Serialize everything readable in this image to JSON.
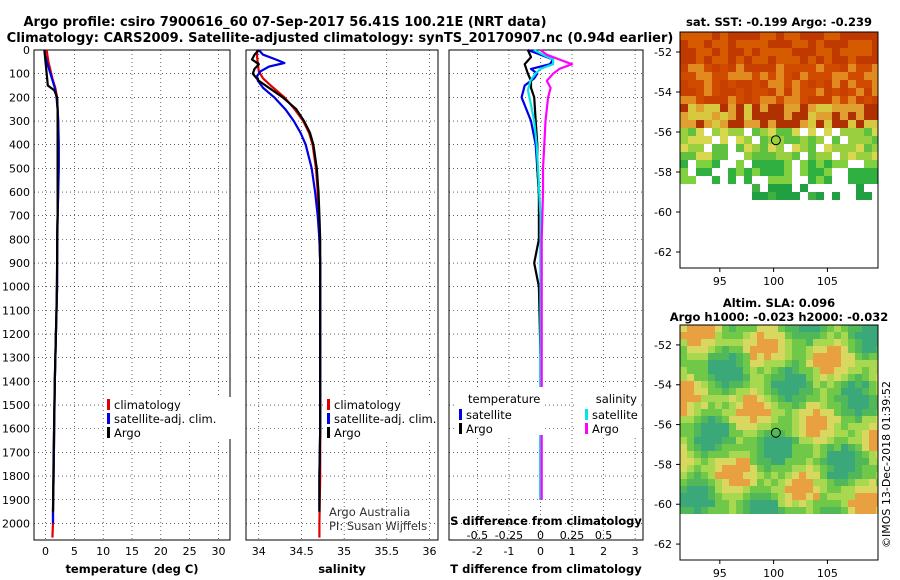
{
  "figure": {
    "title_line1": "Argo profile: csiro 7900616_60 07-Sep-2017 56.41S 100.21E (NRT data)",
    "title_line2": "Climatology: CARS2009. Satellite-adjusted climatology: synTS_20170907.nc (0.94d earlier)",
    "credit": "©IMOS 13-Dec-2018 01:39:52",
    "watermark_line1": "Argo Australia",
    "watermark_line2": "PI: Susan Wijffels"
  },
  "colors": {
    "climatology": "#e00000",
    "satellite": "#0000e6",
    "argo": "#000000",
    "satellite_salinity": "#00e5e5",
    "argo_salinity": "#ff00ff",
    "grid": "#000000"
  },
  "depth_ticks": [
    "0",
    "100",
    "200",
    "300",
    "400",
    "500",
    "600",
    "700",
    "800",
    "900",
    "1000",
    "1100",
    "1200",
    "1300",
    "1400",
    "1500",
    "1600",
    "1700",
    "1800",
    "1900",
    "2000"
  ],
  "chart_data": [
    {
      "type": "line",
      "name": "temperature",
      "xlabel": "temperature (deg C)",
      "xlim": [
        -2,
        32
      ],
      "ylim": [
        0,
        2070
      ],
      "xticks": [
        "0",
        "5",
        "10",
        "15",
        "20",
        "25",
        "30"
      ],
      "legend": [
        "climatology",
        "satellite-adj. clim.",
        "Argo"
      ],
      "series": [
        {
          "name": "climatology",
          "color": "#e00000",
          "depth": [
            0,
            20,
            50,
            80,
            120,
            160,
            200,
            250,
            300,
            400,
            500,
            600,
            700,
            800,
            900,
            1000,
            1200,
            1400,
            1600,
            1800,
            1950,
            2000,
            2060
          ],
          "values": [
            0.2,
            0.3,
            0.5,
            0.8,
            1.2,
            1.7,
            2.0,
            2.1,
            2.2,
            2.2,
            2.2,
            2.2,
            2.1,
            2.0,
            2.0,
            2.0,
            1.8,
            1.6,
            1.5,
            1.4,
            1.3,
            1.3,
            1.2
          ]
        },
        {
          "name": "satellite-adj. clim.",
          "color": "#0000e6",
          "depth": [
            0,
            20,
            50,
            80,
            120,
            160,
            200,
            250,
            300,
            400,
            500,
            600,
            700,
            800,
            900,
            1000,
            1200,
            1400,
            1600,
            1800,
            1950,
            2000
          ],
          "values": [
            -0.2,
            -0.1,
            0.2,
            0.6,
            1.1,
            1.6,
            1.9,
            2.1,
            2.2,
            2.3,
            2.3,
            2.2,
            2.1,
            2.0,
            2.0,
            2.0,
            1.8,
            1.6,
            1.5,
            1.4,
            1.3,
            1.3
          ]
        },
        {
          "name": "Argo",
          "color": "#000000",
          "depth": [
            0,
            50,
            100,
            150,
            170,
            200,
            250,
            300,
            400,
            500,
            700,
            900,
            1100,
            1400,
            1700,
            1950
          ],
          "values": [
            -0.2,
            0.0,
            0.2,
            0.4,
            1.5,
            2.0,
            2.1,
            2.1,
            2.1,
            2.1,
            2.1,
            2.0,
            1.9,
            1.6,
            1.4,
            1.3
          ]
        }
      ]
    },
    {
      "type": "line",
      "name": "salinity",
      "xlabel": "salinity",
      "xlim": [
        33.85,
        36.1
      ],
      "ylim": [
        0,
        2070
      ],
      "xticks": [
        "34",
        "34.5",
        "35",
        "35.5",
        "36"
      ],
      "legend": [
        "climatology",
        "satellite-adj. clim.",
        "Argo"
      ],
      "series": [
        {
          "name": "climatology",
          "color": "#e00000",
          "depth": [
            0,
            30,
            60,
            90,
            120,
            150,
            200,
            250,
            300,
            350,
            400,
            500,
            600,
            700,
            800,
            900,
            1000,
            1200,
            1400,
            1600,
            1800,
            2000,
            2060
          ],
          "values": [
            33.98,
            33.98,
            33.99,
            34.0,
            34.05,
            34.14,
            34.3,
            34.42,
            34.52,
            34.59,
            34.63,
            34.67,
            34.69,
            34.7,
            34.71,
            34.72,
            34.72,
            34.72,
            34.72,
            34.72,
            34.72,
            34.71,
            34.71
          ]
        },
        {
          "name": "satellite-adj. clim.",
          "color": "#0000e6",
          "depth": [
            0,
            20,
            40,
            55,
            70,
            90,
            110,
            130,
            160,
            200,
            250,
            300,
            350,
            400,
            500,
            600,
            700,
            800,
            900,
            1000,
            1200,
            1400,
            1600,
            1800,
            1950
          ],
          "values": [
            34.0,
            34.05,
            34.2,
            34.3,
            34.12,
            34.02,
            33.98,
            33.99,
            34.05,
            34.18,
            34.31,
            34.41,
            34.49,
            34.55,
            34.62,
            34.66,
            34.69,
            34.71,
            34.72,
            34.72,
            34.72,
            34.72,
            34.72,
            34.71,
            34.71
          ]
        },
        {
          "name": "Argo",
          "color": "#000000",
          "depth": [
            0,
            20,
            40,
            60,
            80,
            100,
            130,
            160,
            200,
            250,
            300,
            350,
            400,
            500,
            600,
            700,
            800,
            900,
            1000,
            1200,
            1400,
            1600,
            1800,
            1950
          ],
          "values": [
            34.0,
            33.95,
            33.92,
            34.0,
            33.95,
            33.93,
            34.0,
            34.12,
            34.28,
            34.44,
            34.53,
            34.6,
            34.64,
            34.68,
            34.7,
            34.71,
            34.72,
            34.72,
            34.72,
            34.72,
            34.72,
            34.72,
            34.71,
            34.71
          ]
        }
      ]
    },
    {
      "type": "line",
      "name": "difference from climatology",
      "xlabel": "T difference from climatology",
      "xlabel_top": "S difference from climatology",
      "xlim": [
        -2.9,
        3.25
      ],
      "s_xlim": [
        -0.725,
        0.8125
      ],
      "ylim": [
        0,
        2070
      ],
      "xticks": [
        "-2",
        "-1",
        "0",
        "1",
        "2",
        "3"
      ],
      "s_xticks": [
        "-0.5",
        "-0.25",
        "0",
        "0.25",
        "0.5"
      ],
      "legend_temperature_title": "temperature",
      "legend_salinity_title": "salinity",
      "legend_temperature": [
        "satellite",
        "Argo"
      ],
      "legend_salinity": [
        "satellite",
        "Argo"
      ],
      "series": [
        {
          "name": "T satellite",
          "color": "#0000e6",
          "depth": [
            0,
            20,
            40,
            60,
            80,
            100,
            120,
            150,
            200,
            300,
            400,
            500,
            600,
            800,
            1000,
            1300,
            1600,
            1900
          ],
          "values": [
            -0.4,
            0.0,
            0.4,
            0.3,
            -0.3,
            -0.1,
            -0.2,
            -0.5,
            -0.6,
            -0.3,
            -0.15,
            -0.1,
            -0.05,
            0.0,
            0.0,
            0.0,
            0.0,
            0.0
          ]
        },
        {
          "name": "T Argo",
          "color": "#000000",
          "depth": [
            0,
            30,
            60,
            100,
            130,
            160,
            200,
            300,
            400,
            500,
            600,
            800,
            900,
            1000,
            1300,
            1600,
            1900
          ],
          "values": [
            -0.4,
            -0.3,
            -0.5,
            -0.4,
            -0.3,
            -0.3,
            -0.2,
            -0.15,
            -0.1,
            -0.1,
            -0.05,
            -0.05,
            -0.2,
            -0.05,
            0.0,
            0.0,
            0.0
          ]
        },
        {
          "name": "S satellite",
          "color": "#00e5e5",
          "depth": [
            0,
            20,
            40,
            60,
            80,
            100,
            130,
            170,
            220,
            300,
            400,
            500,
            600,
            700,
            800,
            1000,
            1300,
            1600,
            1900
          ],
          "values": [
            -0.05,
            0.02,
            0.1,
            0.1,
            0.0,
            -0.04,
            -0.08,
            -0.1,
            -0.08,
            -0.05,
            -0.03,
            -0.02,
            -0.01,
            0.0,
            0.0,
            0.0,
            0.0,
            0.0,
            0.0
          ]
        },
        {
          "name": "S Argo",
          "color": "#ff00ff",
          "depth": [
            0,
            20,
            40,
            60,
            80,
            100,
            130,
            160,
            200,
            300,
            400,
            500,
            600,
            800,
            1000,
            1300,
            1600,
            1900
          ],
          "values": [
            0.0,
            0.05,
            0.15,
            0.25,
            0.15,
            0.1,
            0.05,
            0.08,
            0.06,
            0.04,
            0.03,
            0.02,
            0.02,
            0.01,
            0.01,
            0.01,
            0.01,
            0.01
          ]
        }
      ]
    }
  ],
  "maps": [
    {
      "title_line1": "sat. SST: -0.199 Argo: -0.239",
      "title_line2": "",
      "kind": "sst",
      "lon_ticks": [
        "95",
        "100",
        "105"
      ],
      "lat_ticks": [
        "-52",
        "-54",
        "-56",
        "-58",
        "-60",
        "-62"
      ],
      "profile_lat": -56.41,
      "profile_lon": 100.21
    },
    {
      "title_line1": "Altim. SLA: 0.096",
      "title_line2": "Argo h1000: -0.023 h2000: -0.032",
      "kind": "sla",
      "lon_ticks": [
        "95",
        "100",
        "105"
      ],
      "lat_ticks": [
        "-52",
        "-54",
        "-56",
        "-58",
        "-60",
        "-62"
      ],
      "profile_lat": -56.41,
      "profile_lon": 100.21
    }
  ]
}
